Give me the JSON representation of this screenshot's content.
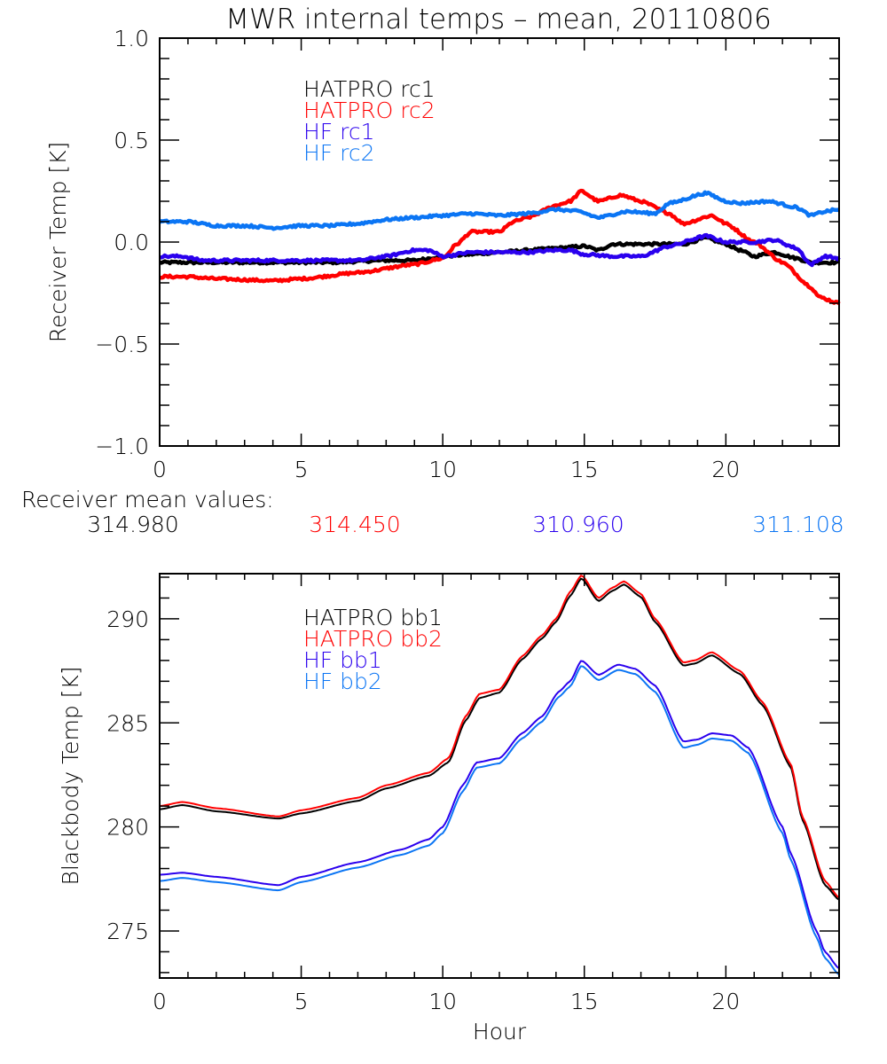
{
  "title": "MWR internal temps – mean, 20110806",
  "colors": {
    "black": "#000000",
    "red": "#ff0000",
    "violet": "#2a00ee",
    "lightblue": "#0b75f4"
  },
  "receiver_means": {
    "label": "Receiver mean values:",
    "values": [
      {
        "text": "314.980",
        "color": "#000000"
      },
      {
        "text": "314.450",
        "color": "#ff0000"
      },
      {
        "text": "310.960",
        "color": "#2a00ee"
      },
      {
        "text": "311.108",
        "color": "#0b75f4"
      }
    ]
  },
  "chart_data": [
    {
      "type": "line",
      "title": "MWR internal temps – mean, 20110806",
      "xlabel": "",
      "ylabel": "Receiver Temp [K]",
      "xlim": [
        0,
        24
      ],
      "ylim": [
        -1.0,
        1.0
      ],
      "xticks": [
        0,
        5,
        10,
        15,
        20
      ],
      "xtick_labels": [
        "0",
        "5",
        "10",
        "15",
        "20"
      ],
      "x_minor_step": 1,
      "yticks": [
        -1.0,
        -0.5,
        0.0,
        0.5,
        1.0
      ],
      "ytick_labels": [
        "−1.0",
        "−0.5",
        "0.0",
        "0.5",
        "1.0"
      ],
      "y_minor_step": 0.1,
      "grid": false,
      "legend_position": "top-left-inside",
      "noisy": true,
      "series": [
        {
          "name": "HATPRO rc1",
          "color": "#000000",
          "x": [
            0,
            2,
            4,
            6,
            8,
            9,
            10,
            11,
            12,
            13,
            14,
            15,
            15.5,
            16,
            17,
            18,
            18.5,
            19.3,
            20,
            20.5,
            21,
            21.7,
            22.5,
            23,
            24
          ],
          "y": [
            -0.1,
            -0.1,
            -0.1,
            -0.1,
            -0.09,
            -0.09,
            -0.07,
            -0.06,
            -0.05,
            -0.04,
            -0.03,
            -0.02,
            -0.04,
            -0.01,
            -0.01,
            -0.01,
            -0.01,
            0.02,
            -0.01,
            -0.04,
            -0.07,
            -0.05,
            -0.08,
            -0.1,
            -0.1
          ]
        },
        {
          "name": "HATPRO rc2",
          "color": "#ff0000",
          "x": [
            0,
            1,
            2,
            4,
            5,
            7,
            9,
            10,
            10.5,
            11,
            12,
            12.5,
            13,
            14,
            14.5,
            14.9,
            15.5,
            16.3,
            17,
            18,
            18.5,
            19.5,
            20,
            21,
            22,
            23,
            23.3,
            24
          ],
          "y": [
            -0.17,
            -0.17,
            -0.18,
            -0.19,
            -0.18,
            -0.15,
            -0.11,
            -0.08,
            -0.01,
            0.05,
            0.05,
            0.1,
            0.12,
            0.18,
            0.2,
            0.25,
            0.2,
            0.23,
            0.2,
            0.14,
            0.09,
            0.13,
            0.09,
            0.0,
            -0.1,
            -0.22,
            -0.27,
            -0.3
          ]
        },
        {
          "name": "HF rc1",
          "color": "#2a00ee",
          "x": [
            0,
            0.8,
            1.5,
            3,
            5,
            7,
            8,
            9,
            9.5,
            10,
            11,
            12,
            13,
            14,
            14.5,
            15,
            16,
            17,
            18,
            19.3,
            20,
            21,
            21.7,
            22.5,
            23,
            23.5,
            24
          ],
          "y": [
            -0.07,
            -0.07,
            -0.09,
            -0.09,
            -0.09,
            -0.09,
            -0.07,
            -0.04,
            -0.04,
            -0.07,
            -0.05,
            -0.05,
            -0.05,
            -0.04,
            -0.04,
            -0.06,
            -0.07,
            -0.07,
            -0.02,
            0.03,
            0.0,
            0.0,
            0.01,
            -0.03,
            -0.11,
            -0.07,
            -0.08
          ]
        },
        {
          "name": "HF rc2",
          "color": "#0b75f4",
          "x": [
            0,
            1,
            2,
            3,
            4,
            5,
            6,
            7,
            7.5,
            8,
            9,
            10,
            11,
            12,
            13,
            14,
            14.8,
            15.5,
            16.5,
            17.5,
            18,
            19.3,
            20,
            20.5,
            21.5,
            22.5,
            23,
            23.5,
            24
          ],
          "y": [
            0.1,
            0.1,
            0.08,
            0.08,
            0.07,
            0.08,
            0.08,
            0.09,
            0.1,
            0.11,
            0.12,
            0.13,
            0.14,
            0.13,
            0.14,
            0.16,
            0.15,
            0.12,
            0.15,
            0.14,
            0.19,
            0.24,
            0.2,
            0.19,
            0.2,
            0.17,
            0.13,
            0.15,
            0.16
          ]
        }
      ]
    },
    {
      "type": "line",
      "title": "",
      "xlabel": "Hour",
      "ylabel": "Blackbody Temp [K]",
      "xlim": [
        0,
        24
      ],
      "ylim": [
        272.74,
        292.17
      ],
      "xticks": [
        0,
        5,
        10,
        15,
        20
      ],
      "xtick_labels": [
        "0",
        "5",
        "10",
        "15",
        "20"
      ],
      "x_minor_step": 1,
      "yticks": [
        275,
        280,
        285,
        290
      ],
      "ytick_labels": [
        "275",
        "280",
        "285",
        "290"
      ],
      "y_minor_step": 1,
      "grid": false,
      "legend_position": "top-left-inside",
      "noisy": false,
      "series": [
        {
          "name": "HATPRO bb1",
          "color": "#000000",
          "x": [
            0,
            0.8,
            2,
            4.2,
            5,
            7,
            8,
            9.5,
            10.2,
            10.8,
            11.3,
            12,
            12.8,
            13.5,
            14,
            14.5,
            14.9,
            15.5,
            16,
            16.4,
            17,
            17.5,
            18.5,
            18.9,
            19.5,
            20.5,
            21.3,
            22.3,
            22.7,
            23.5,
            24
          ],
          "y": [
            280.85,
            281.05,
            280.75,
            280.4,
            280.65,
            281.25,
            281.85,
            282.45,
            283.1,
            285.1,
            286.2,
            286.45,
            288.05,
            289.05,
            289.85,
            291.1,
            291.95,
            290.85,
            291.35,
            291.65,
            291.05,
            289.85,
            287.75,
            287.85,
            288.25,
            287.35,
            285.85,
            282.85,
            280.35,
            277.2,
            276.5
          ]
        },
        {
          "name": "HATPRO bb2",
          "color": "#ff0000",
          "x": [
            0,
            0.8,
            2,
            4.2,
            5,
            7,
            8,
            9.5,
            10.2,
            10.8,
            11.3,
            12,
            12.8,
            13.5,
            14,
            14.5,
            14.9,
            15.5,
            16,
            16.4,
            17,
            17.5,
            18.5,
            18.9,
            19.5,
            20.5,
            21.3,
            22.3,
            22.7,
            23.5,
            24
          ],
          "y": [
            281.0,
            281.2,
            280.9,
            280.5,
            280.8,
            281.4,
            282.0,
            282.6,
            283.3,
            285.3,
            286.4,
            286.6,
            288.2,
            289.2,
            290.0,
            291.3,
            292.1,
            291.0,
            291.5,
            291.8,
            291.2,
            290.0,
            287.9,
            288.0,
            288.4,
            287.5,
            286.0,
            283.0,
            280.5,
            277.4,
            276.6
          ]
        },
        {
          "name": "HF bb1",
          "color": "#2a00ee",
          "x": [
            0,
            0.8,
            2,
            4.2,
            5,
            7,
            8.5,
            9.5,
            10,
            10.7,
            11.2,
            12,
            12.8,
            13.5,
            14.1,
            14.5,
            14.9,
            15.5,
            16.2,
            16.8,
            17.5,
            18.5,
            19,
            19.5,
            20.2,
            20.8,
            22,
            22.3,
            23.2,
            23.5,
            24
          ],
          "y": [
            277.7,
            277.8,
            277.6,
            277.2,
            277.6,
            278.3,
            278.9,
            279.4,
            280.0,
            282.0,
            283.1,
            283.3,
            284.5,
            285.3,
            286.5,
            287.0,
            288.0,
            287.3,
            287.8,
            287.6,
            286.8,
            284.1,
            284.2,
            284.5,
            284.4,
            283.8,
            280.0,
            278.7,
            275.0,
            274.0,
            273.2
          ]
        },
        {
          "name": "HF bb2",
          "color": "#0b75f4",
          "x": [
            0,
            0.8,
            2,
            4.2,
            5,
            7,
            8.5,
            9.5,
            10,
            10.7,
            11.2,
            12,
            12.8,
            13.5,
            14.1,
            14.5,
            14.9,
            15.5,
            16.2,
            16.8,
            17.5,
            18.5,
            19,
            19.5,
            20.2,
            20.8,
            22,
            22.3,
            23.2,
            23.5,
            24
          ],
          "y": [
            277.4,
            277.55,
            277.35,
            276.95,
            277.35,
            278.05,
            278.65,
            279.1,
            279.7,
            281.7,
            282.85,
            283.05,
            284.25,
            285.05,
            286.25,
            286.75,
            287.75,
            287.05,
            287.55,
            287.35,
            286.5,
            283.8,
            283.95,
            284.25,
            284.15,
            283.55,
            279.7,
            278.4,
            274.7,
            273.7,
            272.9
          ]
        }
      ]
    }
  ]
}
